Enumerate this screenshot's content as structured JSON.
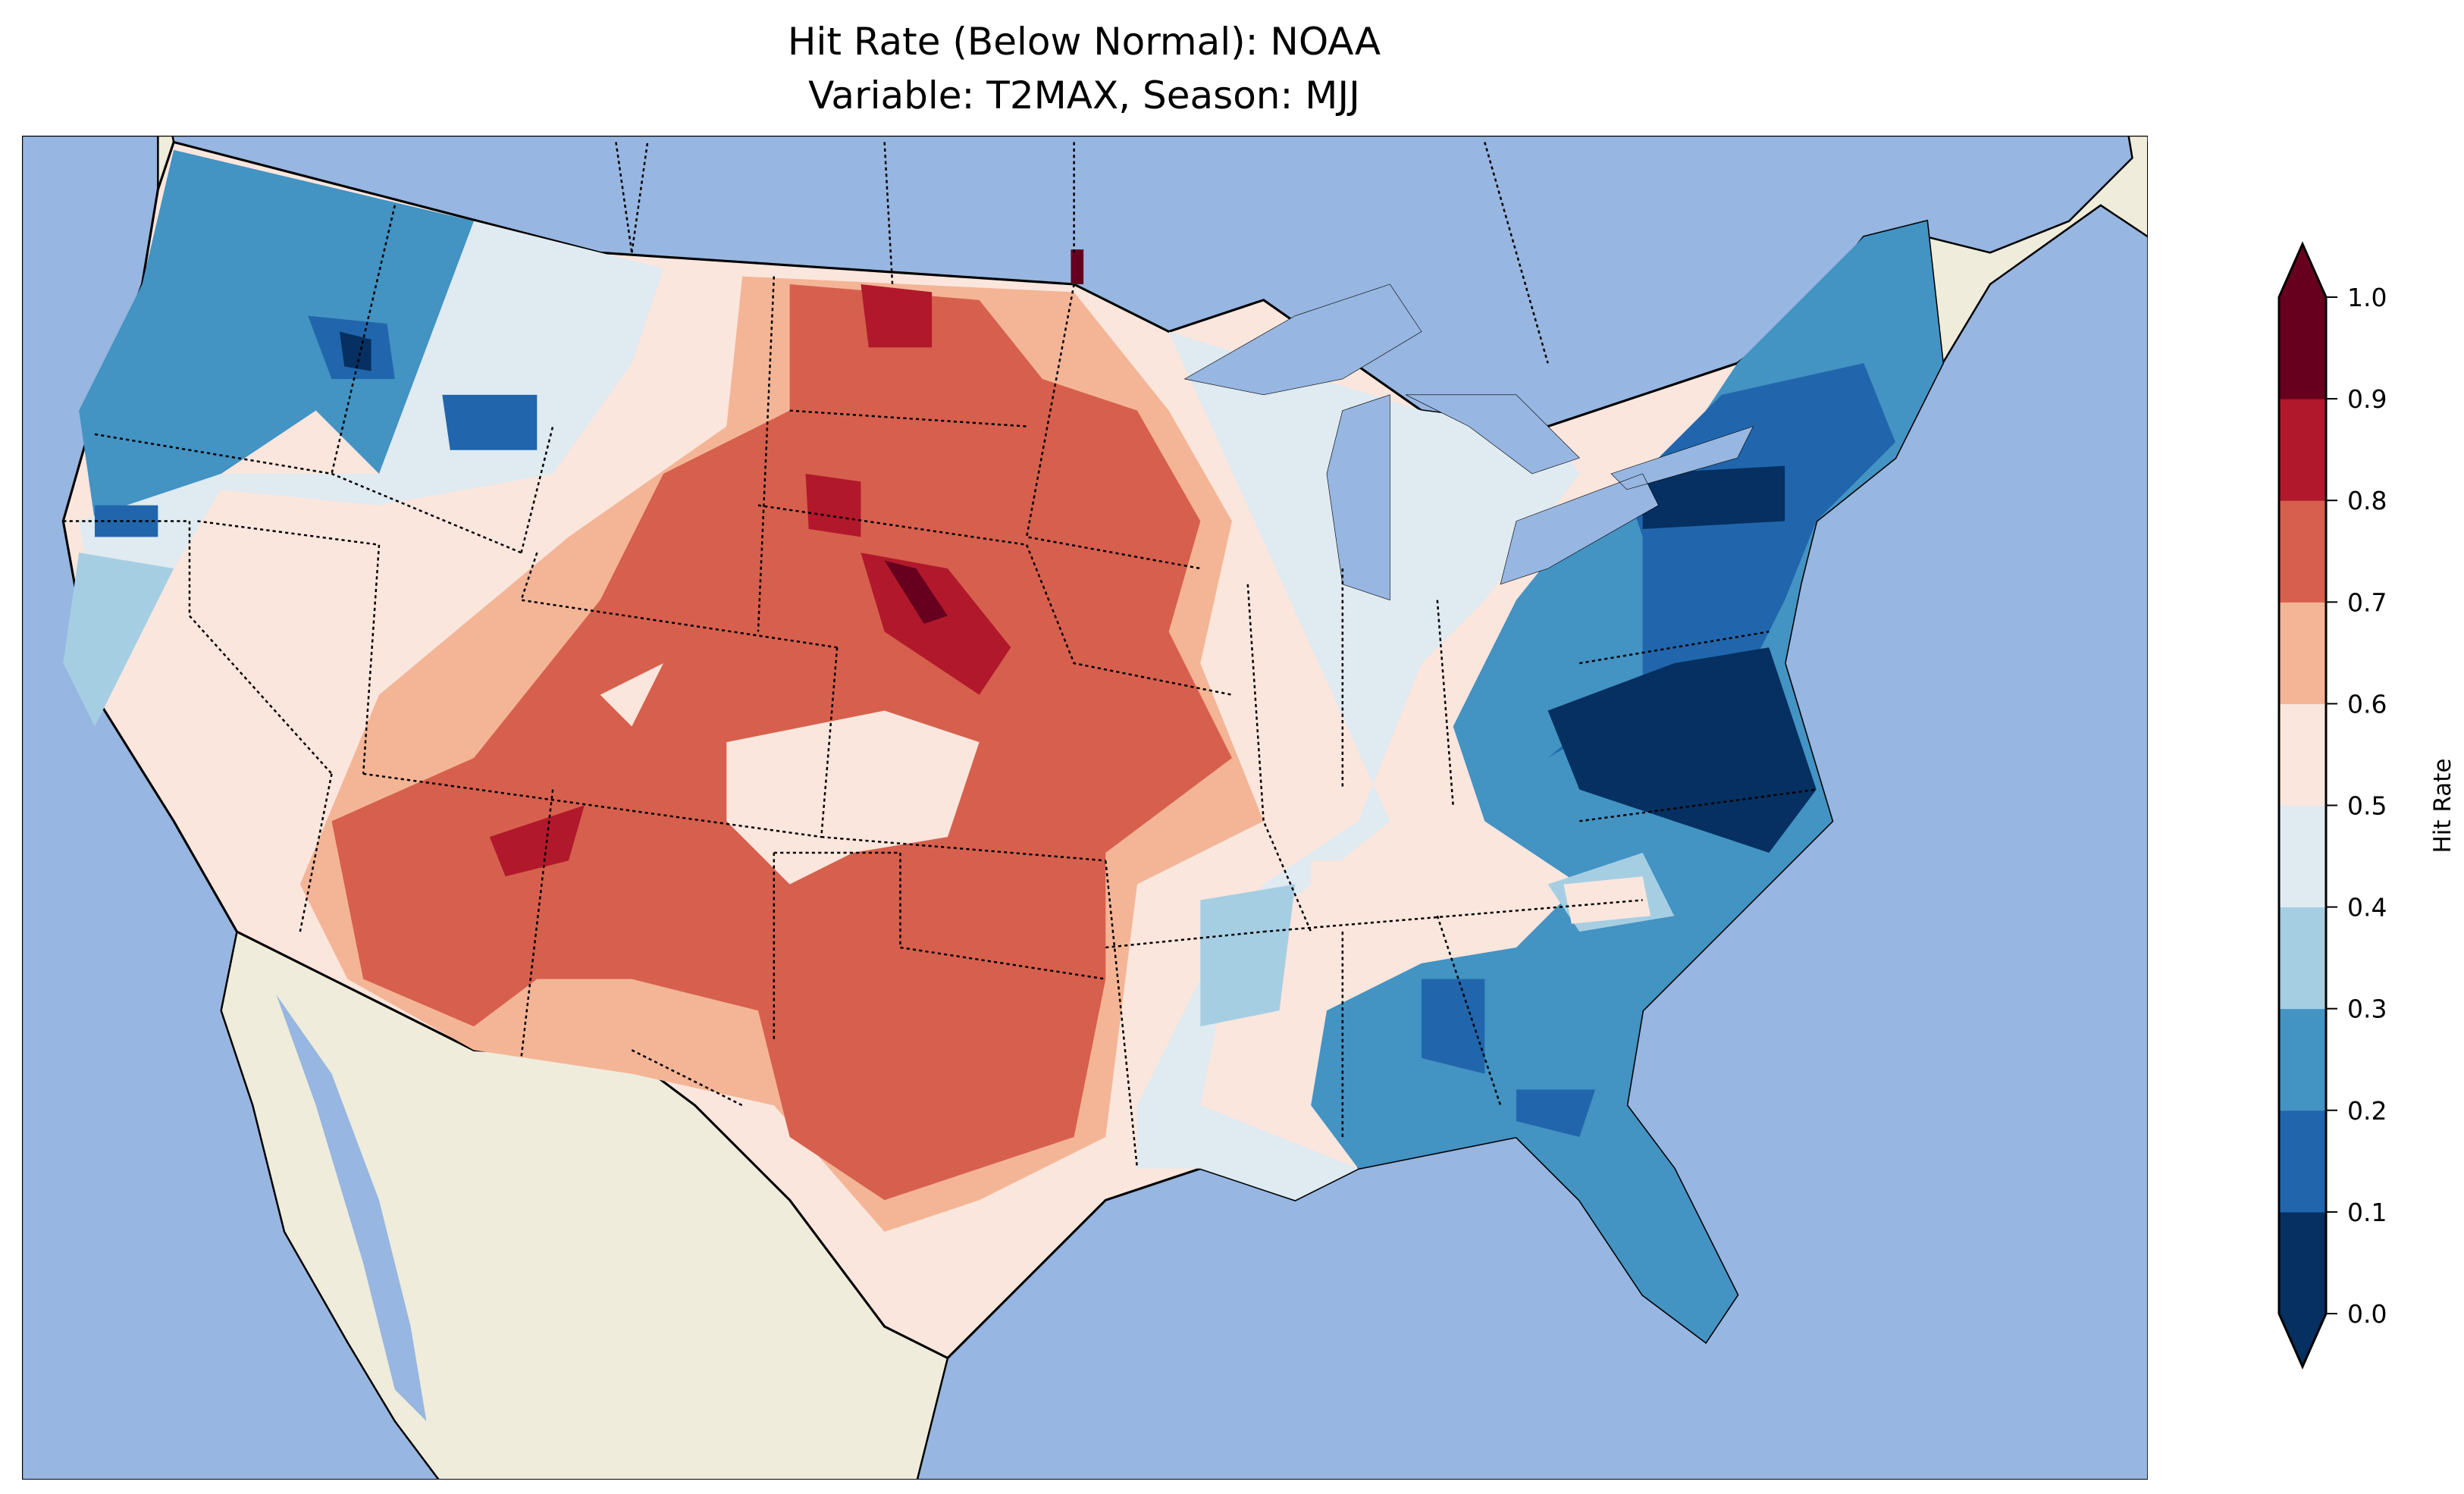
{
  "chart_data": {
    "type": "heatmap",
    "title_line1": "Hit Rate (Below Normal): NOAA",
    "title_line2": "Variable: T2MAX, Season: MJJ",
    "colorbar": {
      "label": "Hit Rate",
      "range": [
        0.0,
        1.0
      ],
      "extend": "both",
      "ticks": [
        "0.0",
        "0.1",
        "0.2",
        "0.3",
        "0.4",
        "0.5",
        "0.6",
        "0.7",
        "0.8",
        "0.9",
        "1.0"
      ],
      "levels": [
        0.0,
        0.1,
        0.2,
        0.3,
        0.4,
        0.5,
        0.6,
        0.7,
        0.8,
        0.9,
        1.0
      ],
      "colors": [
        "#053061",
        "#2166ac",
        "#4393c3",
        "#a6cee3",
        "#dfeaf1",
        "#fae6dd",
        "#f4b596",
        "#d6604d",
        "#b2182b",
        "#67001f"
      ]
    },
    "map": {
      "region": "Contiguous United States",
      "ocean_color": "#97b6e1",
      "land_color": "#efecdb"
    }
  }
}
